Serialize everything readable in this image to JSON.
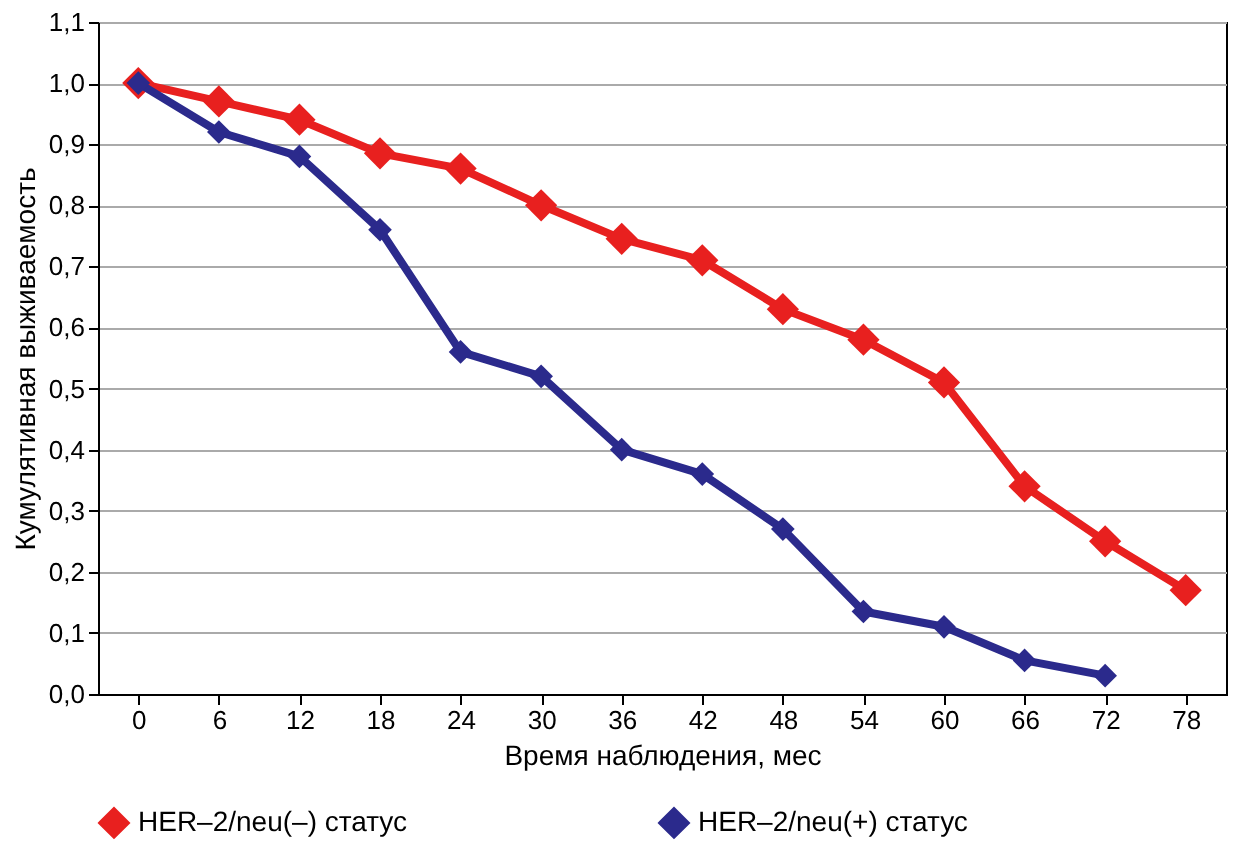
{
  "chart_data": {
    "type": "line",
    "xlabel": "Время наблюдения, мес",
    "ylabel": "Кумулятивная выживаемость",
    "categories": [
      "0",
      "6",
      "12",
      "18",
      "24",
      "30",
      "36",
      "42",
      "48",
      "54",
      "60",
      "66",
      "72",
      "78"
    ],
    "series": [
      {
        "name": "HER–2/neu(–) статус",
        "color": "#e8201f",
        "values": [
          1.0,
          0.97,
          0.94,
          0.885,
          0.86,
          0.8,
          0.745,
          0.71,
          0.63,
          0.58,
          0.51,
          0.34,
          0.25,
          0.17
        ]
      },
      {
        "name": "HER–2/neu(+) статус",
        "color": "#2b2a8c",
        "values": [
          1.0,
          0.92,
          0.88,
          0.76,
          0.56,
          0.52,
          0.4,
          0.36,
          0.27,
          0.135,
          0.11,
          0.055,
          0.03,
          null
        ]
      }
    ],
    "ylim": [
      0,
      1.1
    ],
    "yticks": [
      {
        "value": 0,
        "label": "0,0"
      },
      {
        "value": 0.1,
        "label": "0,1"
      },
      {
        "value": 0.2,
        "label": "0,2"
      },
      {
        "value": 0.3,
        "label": "0,3"
      },
      {
        "value": 0.4,
        "label": "0,4"
      },
      {
        "value": 0.5,
        "label": "0,5"
      },
      {
        "value": 0.6,
        "label": "0,6"
      },
      {
        "value": 0.7,
        "label": "0,7"
      },
      {
        "value": 0.8,
        "label": "0,8"
      },
      {
        "value": 0.9,
        "label": "0,9"
      },
      {
        "value": 1.0,
        "label": "1,0"
      },
      {
        "value": 1.1,
        "label": "1,1"
      }
    ],
    "grid": "y",
    "legend": "bottom",
    "marker": "diamond",
    "line_style": "solid"
  }
}
